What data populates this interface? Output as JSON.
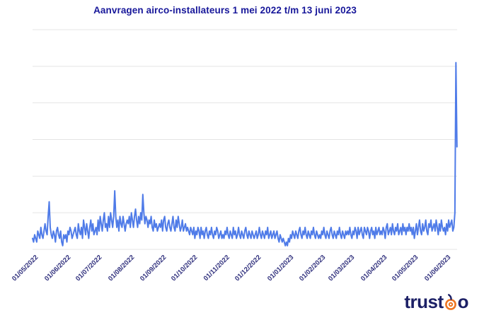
{
  "colors": {
    "background": "#ffffff",
    "title": "#17179a",
    "axis_labels": "#32327e",
    "line": "#4f7be8",
    "gridline": "#e4e4e4",
    "logo_navy": "#1c2066",
    "logo_orange": "#ee7623"
  },
  "logo": {
    "part1": "trust",
    "part2": "o",
    "icon": "target-spiral"
  },
  "chart_data": {
    "type": "line",
    "title": "Aanvragen airco-installateurs 1 mei 2022 t/m 13 juni 2023",
    "x_unit": "day",
    "x_range": {
      "start": "01/05/2022",
      "end": "13/06/2023",
      "days": 409
    },
    "x_ticks": [
      {
        "label": "01/05/2022",
        "day_index": 0
      },
      {
        "label": "01/06/2022",
        "day_index": 31
      },
      {
        "label": "01/07/2022",
        "day_index": 61
      },
      {
        "label": "01/08/2022",
        "day_index": 92
      },
      {
        "label": "01/09/2022",
        "day_index": 123
      },
      {
        "label": "01/10/2022",
        "day_index": 153
      },
      {
        "label": "01/11/2022",
        "day_index": 184
      },
      {
        "label": "01/12/2022",
        "day_index": 214
      },
      {
        "label": "01/01/2023",
        "day_index": 245
      },
      {
        "label": "01/02/2023",
        "day_index": 276
      },
      {
        "label": "01/03/2023",
        "day_index": 304
      },
      {
        "label": "01/04/2023",
        "day_index": 335
      },
      {
        "label": "01/05/2023",
        "day_index": 365
      },
      {
        "label": "01/06/2023",
        "day_index": 396
      }
    ],
    "ylim": [
      0,
      60
    ],
    "y_gridlines": [
      0,
      10,
      20,
      30,
      40,
      50,
      60
    ],
    "y_axis_labels_visible": false,
    "legend": "none",
    "grid": "horizontal",
    "values": [
      3,
      2,
      4,
      3,
      2,
      5,
      4,
      3,
      6,
      4,
      3,
      5,
      7,
      5,
      4,
      9,
      13,
      6,
      4,
      3,
      5,
      4,
      2,
      5,
      6,
      4,
      3,
      5,
      2,
      1,
      4,
      3,
      4,
      2,
      5,
      4,
      6,
      5,
      3,
      4,
      5,
      6,
      4,
      3,
      7,
      5,
      4,
      6,
      3,
      8,
      6,
      4,
      7,
      5,
      3,
      6,
      8,
      5,
      7,
      4,
      5,
      6,
      4,
      8,
      5,
      9,
      7,
      5,
      8,
      10,
      6,
      7,
      5,
      9,
      6,
      10,
      8,
      6,
      9,
      16,
      9,
      6,
      8,
      5,
      9,
      7,
      6,
      9,
      7,
      5,
      7,
      8,
      7,
      9,
      6,
      10,
      8,
      6,
      9,
      11,
      8,
      6,
      9,
      7,
      10,
      8,
      15,
      10,
      7,
      9,
      8,
      6,
      8,
      7,
      9,
      6,
      5,
      8,
      6,
      7,
      5,
      6,
      7,
      6,
      8,
      5,
      8,
      9,
      6,
      5,
      7,
      8,
      6,
      5,
      7,
      9,
      6,
      5,
      8,
      6,
      9,
      7,
      5,
      6,
      8,
      5,
      6,
      7,
      5,
      6,
      5,
      4,
      6,
      5,
      4,
      6,
      3,
      5,
      4,
      6,
      5,
      3,
      6,
      4,
      5,
      3,
      5,
      6,
      4,
      3,
      5,
      4,
      6,
      4,
      3,
      5,
      4,
      6,
      5,
      3,
      4,
      5,
      3,
      4,
      3,
      5,
      4,
      6,
      4,
      3,
      5,
      4,
      3,
      6,
      4,
      5,
      3,
      4,
      6,
      4,
      3,
      5,
      4,
      3,
      5,
      6,
      4,
      3,
      5,
      4,
      3,
      5,
      4,
      3,
      4,
      5,
      3,
      4,
      6,
      4,
      3,
      5,
      4,
      3,
      5,
      4,
      6,
      3,
      4,
      5,
      3,
      4,
      5,
      3,
      4,
      5,
      3,
      2,
      4,
      3,
      2,
      3,
      2,
      1,
      2,
      1,
      3,
      2,
      4,
      3,
      5,
      4,
      3,
      5,
      4,
      3,
      5,
      6,
      4,
      3,
      5,
      4,
      6,
      4,
      3,
      5,
      4,
      3,
      5,
      4,
      6,
      4,
      3,
      5,
      4,
      3,
      4,
      3,
      5,
      4,
      6,
      4,
      3,
      5,
      4,
      3,
      5,
      6,
      4,
      3,
      5,
      4,
      3,
      5,
      4,
      6,
      4,
      3,
      5,
      4,
      3,
      5,
      4,
      5,
      4,
      6,
      4,
      3,
      5,
      4,
      6,
      5,
      3,
      6,
      4,
      5,
      6,
      4,
      3,
      6,
      5,
      4,
      6,
      5,
      3,
      5,
      6,
      4,
      5,
      3,
      6,
      4,
      5,
      6,
      4,
      5,
      4,
      6,
      5,
      3,
      6,
      7,
      4,
      5,
      6,
      4,
      7,
      5,
      4,
      6,
      5,
      7,
      4,
      5,
      6,
      4,
      7,
      5,
      6,
      4,
      6,
      5,
      7,
      5,
      6,
      4,
      6,
      3,
      5,
      7,
      4,
      6,
      8,
      5,
      4,
      7,
      5,
      6,
      8,
      5,
      4,
      7,
      6,
      8,
      5,
      6,
      7,
      5,
      8,
      6,
      4,
      7,
      5,
      8,
      6,
      5,
      6,
      4,
      7,
      5,
      8,
      6,
      7,
      8,
      5,
      6,
      10,
      51,
      28
    ]
  }
}
